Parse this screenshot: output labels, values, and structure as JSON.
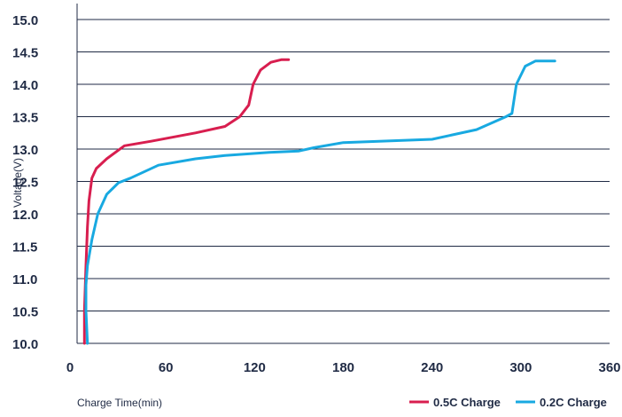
{
  "chart_data": {
    "type": "line",
    "title": "",
    "xlabel": "Charge Time(min)",
    "ylabel": "Voltage(V)",
    "xlim": [
      0,
      360
    ],
    "ylim": [
      10.0,
      15.0
    ],
    "x_ticks": [
      "0",
      "60",
      "120",
      "180",
      "240",
      "300",
      "360"
    ],
    "y_ticks": [
      "10.0",
      "10.5",
      "11.0",
      "11.5",
      "12.0",
      "12.5",
      "13.0",
      "13.5",
      "14.0",
      "14.5",
      "15.0"
    ],
    "grid": "horizontal",
    "legend_position": "bottom-right",
    "series": [
      {
        "name": "0.5C Charge",
        "color": "#d81e4f",
        "points": [
          [
            5,
            10.0
          ],
          [
            5,
            10.5
          ],
          [
            6,
            11.2
          ],
          [
            7,
            11.8
          ],
          [
            8,
            12.2
          ],
          [
            10,
            12.55
          ],
          [
            13,
            12.7
          ],
          [
            20,
            12.85
          ],
          [
            32,
            13.05
          ],
          [
            50,
            13.12
          ],
          [
            80,
            13.25
          ],
          [
            100,
            13.35
          ],
          [
            110,
            13.5
          ],
          [
            116,
            13.68
          ],
          [
            119,
            14.0
          ],
          [
            124,
            14.22
          ],
          [
            131,
            14.34
          ],
          [
            138,
            14.38
          ],
          [
            143,
            14.38
          ]
        ]
      },
      {
        "name": "0.2C Charge",
        "color": "#18a9e1",
        "points": [
          [
            7,
            10.0
          ],
          [
            6,
            10.5
          ],
          [
            6,
            10.9
          ],
          [
            7,
            11.2
          ],
          [
            10,
            11.6
          ],
          [
            14,
            12.0
          ],
          [
            20,
            12.3
          ],
          [
            28,
            12.48
          ],
          [
            36,
            12.55
          ],
          [
            55,
            12.75
          ],
          [
            80,
            12.85
          ],
          [
            100,
            12.9
          ],
          [
            130,
            12.95
          ],
          [
            150,
            12.97
          ],
          [
            160,
            13.02
          ],
          [
            180,
            13.1
          ],
          [
            240,
            13.15
          ],
          [
            270,
            13.3
          ],
          [
            290,
            13.5
          ],
          [
            294,
            13.55
          ],
          [
            297,
            14.0
          ],
          [
            303,
            14.28
          ],
          [
            310,
            14.36
          ],
          [
            318,
            14.36
          ],
          [
            323,
            14.36
          ]
        ]
      }
    ]
  }
}
